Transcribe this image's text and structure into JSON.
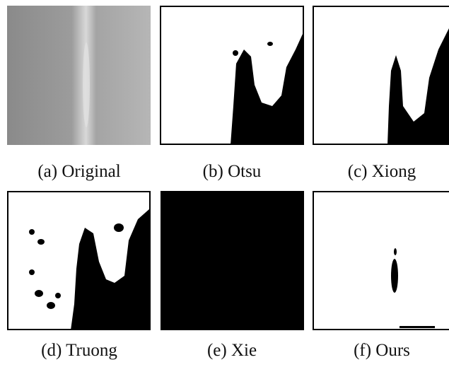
{
  "panels": [
    {
      "caption": "(a) Original"
    },
    {
      "caption": "(b) Otsu"
    },
    {
      "caption": "(c) Xiong"
    },
    {
      "caption": "(d) Truong"
    },
    {
      "caption": "(e) Xie"
    },
    {
      "caption": "(f) Ours"
    }
  ]
}
